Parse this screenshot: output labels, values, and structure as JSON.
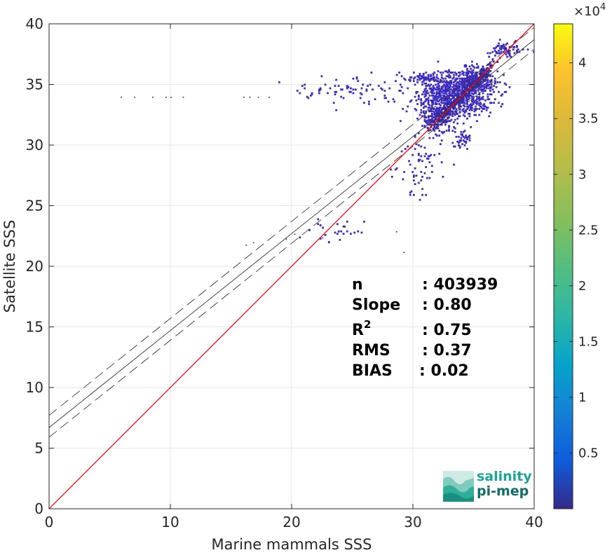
{
  "chart_data": {
    "type": "heatmap",
    "xlabel": "Marine mammals SSS",
    "ylabel": "Satellite SSS",
    "xlim": [
      0,
      40
    ],
    "ylim": [
      0,
      40
    ],
    "x_ticks": [
      "0",
      "10",
      "20",
      "30",
      "40"
    ],
    "y_ticks": [
      "0",
      "5",
      "10",
      "15",
      "20",
      "25",
      "30",
      "35",
      "40"
    ],
    "grid": true,
    "colorbar": {
      "range": [
        0,
        43500
      ],
      "exponent_label": "×10",
      "exponent_power": "4",
      "ticks": [
        "0.5",
        "1",
        "1.5",
        "2",
        "2.5",
        "3",
        "3.5",
        "4"
      ],
      "tick_values": [
        0.5,
        1,
        1.5,
        2,
        2.5,
        3,
        3.5,
        4
      ],
      "colormap": "parula"
    },
    "lines": {
      "identity": {
        "slope": 1,
        "intercept": 0,
        "color": "#ff0000"
      },
      "regression": {
        "slope": 0.8,
        "intercept": 6.7,
        "color": "#333333"
      },
      "regression_upper": {
        "slope": 0.8,
        "intercept": 7.7,
        "style": "dashed"
      },
      "regression_lower": {
        "slope": 0.8,
        "intercept": 5.9,
        "style": "dashed"
      }
    },
    "density_clusters": [
      {
        "x": 33.5,
        "y": 34.0,
        "sx": 1.5,
        "sy": 0.9,
        "n": 900
      },
      {
        "x": 35.0,
        "y": 35.3,
        "sx": 0.8,
        "sy": 0.5,
        "n": 350
      },
      {
        "x": 32.0,
        "y": 32.2,
        "sx": 0.6,
        "sy": 0.6,
        "n": 200
      },
      {
        "x": 37.5,
        "y": 37.8,
        "sx": 0.7,
        "sy": 0.3,
        "n": 80
      },
      {
        "x": 31.0,
        "y": 35.5,
        "sx": 1.0,
        "sy": 0.2,
        "n": 60
      },
      {
        "x": 25.0,
        "y": 34.5,
        "sx": 2.5,
        "sy": 0.6,
        "n": 80
      },
      {
        "x": 30.5,
        "y": 28.5,
        "sx": 0.8,
        "sy": 1.5,
        "n": 70
      },
      {
        "x": 34.0,
        "y": 30.5,
        "sx": 0.5,
        "sy": 0.4,
        "n": 40
      },
      {
        "x": 23.5,
        "y": 22.8,
        "sx": 1.5,
        "sy": 0.6,
        "n": 25
      }
    ],
    "outlier_points": [
      [
        5.9,
        33.9
      ],
      [
        7.0,
        33.9
      ],
      [
        8.5,
        33.9
      ],
      [
        9.6,
        33.9
      ],
      [
        10.0,
        33.9
      ],
      [
        11.0,
        33.9
      ],
      [
        16.0,
        33.9
      ],
      [
        16.5,
        33.9
      ],
      [
        17.2,
        33.9
      ],
      [
        18.1,
        33.9
      ],
      [
        16.2,
        21.7
      ],
      [
        16.8,
        21.9
      ],
      [
        19.5,
        22.2
      ],
      [
        20.2,
        22.6
      ],
      [
        22.5,
        22.3
      ],
      [
        23.0,
        22.0
      ],
      [
        29.2,
        21.1
      ],
      [
        28.6,
        22.8
      ]
    ]
  },
  "stats": {
    "n_label": "n",
    "n_value": ": 403939",
    "slope_label": "Slope",
    "slope_value": ": 0.80",
    "r2_label": "R",
    "r2_sup": "2",
    "r2_value": ": 0.75",
    "rms_label": "RMS",
    "rms_value": ": 0.37",
    "bias_label": "BIAS",
    "bias_value": ": 0.02"
  },
  "logo": {
    "line1": "salinity",
    "line2": "pi-mep",
    "color1": "#1aa596",
    "color2": "#0e6f68"
  }
}
